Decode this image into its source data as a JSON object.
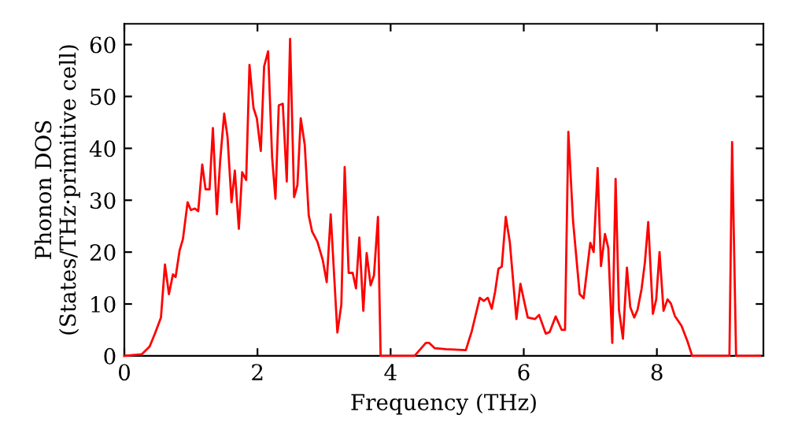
{
  "chart_data": {
    "type": "line",
    "xlabel": "Frequency (THz)",
    "ylabel": "Phonon DOS\n(States/THz·primitive cell)",
    "series": [
      {
        "color": "#ff0000",
        "x": [
          0,
          0.26,
          0.38,
          0.46,
          0.55,
          0.61,
          0.67,
          0.73,
          0.77,
          0.83,
          0.88,
          0.95,
          1.0,
          1.06,
          1.11,
          1.17,
          1.22,
          1.28,
          1.33,
          1.39,
          1.44,
          1.5,
          1.55,
          1.61,
          1.66,
          1.72,
          1.77,
          1.83,
          1.88,
          1.94,
          1.99,
          2.05,
          2.1,
          2.16,
          2.22,
          2.27,
          2.32,
          2.38,
          2.44,
          2.49,
          2.55,
          2.6,
          2.65,
          2.71,
          2.77,
          2.82,
          2.9,
          2.98,
          3.04,
          3.1,
          3.2,
          3.26,
          3.31,
          3.37,
          3.43,
          3.48,
          3.53,
          3.59,
          3.64,
          3.7,
          3.75,
          3.81,
          3.85,
          4.36,
          4.53,
          4.58,
          4.66,
          4.83,
          5.13,
          5.22,
          5.34,
          5.4,
          5.46,
          5.52,
          5.57,
          5.62,
          5.67,
          5.73,
          5.79,
          5.89,
          5.95,
          6.0,
          6.06,
          6.17,
          6.23,
          6.33,
          6.39,
          6.48,
          6.57,
          6.62,
          6.67,
          6.74,
          6.84,
          6.9,
          7.0,
          7.05,
          7.11,
          7.16,
          7.22,
          7.27,
          7.33,
          7.38,
          7.43,
          7.49,
          7.55,
          7.6,
          7.66,
          7.71,
          7.77,
          7.82,
          7.87,
          7.94,
          7.99,
          8.04,
          8.1,
          8.16,
          8.21,
          8.27,
          8.37,
          8.46,
          8.53,
          9.09,
          9.13,
          9.19,
          9.55
        ],
        "values": [
          0,
          0.3,
          1.8,
          4.3,
          7.4,
          17.6,
          11.9,
          15.7,
          15.2,
          20.3,
          22.5,
          29.6,
          28.1,
          28.4,
          27.9,
          36.9,
          32.1,
          32.1,
          43.9,
          27.3,
          37.7,
          46.7,
          42.2,
          29.6,
          35.7,
          24.5,
          35.4,
          33.9,
          56.1,
          47.8,
          45.8,
          39.5,
          55.8,
          58.7,
          38.2,
          30.3,
          48.3,
          48.6,
          33.6,
          61.1,
          30.6,
          32.9,
          45.8,
          40.7,
          27.1,
          24.0,
          22.0,
          18.5,
          14.2,
          27.3,
          4.5,
          9.9,
          36.4,
          16,
          16,
          13,
          22.8,
          8.7,
          19.8,
          13.6,
          15.5,
          26.8,
          0,
          0,
          2.5,
          2.5,
          1.5,
          1.3,
          1.1,
          4.8,
          11.2,
          10.6,
          11.2,
          9.1,
          12.4,
          16.8,
          17.2,
          26.8,
          22,
          7.1,
          13.9,
          10.9,
          7.4,
          7.1,
          7.9,
          4.3,
          4.6,
          7.6,
          5.0,
          5.0,
          43.2,
          26.1,
          11.9,
          11.1,
          21.8,
          20,
          36.2,
          17.3,
          23.5,
          20.8,
          2.5,
          34.1,
          8.9,
          3.3,
          17,
          9.4,
          7.4,
          8.9,
          12.9,
          18,
          25.8,
          8.1,
          10.9,
          20,
          8.7,
          10.9,
          10.1,
          7.7,
          5.8,
          2.8,
          0,
          0,
          41.2,
          0,
          0
        ]
      }
    ],
    "xlim": [
      0,
      9.6
    ],
    "ylim": [
      0,
      64
    ],
    "xticks": [
      0,
      2,
      4,
      6,
      8
    ],
    "yticks": [
      0,
      10,
      20,
      30,
      40,
      50,
      60
    ],
    "grid": false,
    "legend": false,
    "marker": "none",
    "line_style": "solid"
  }
}
